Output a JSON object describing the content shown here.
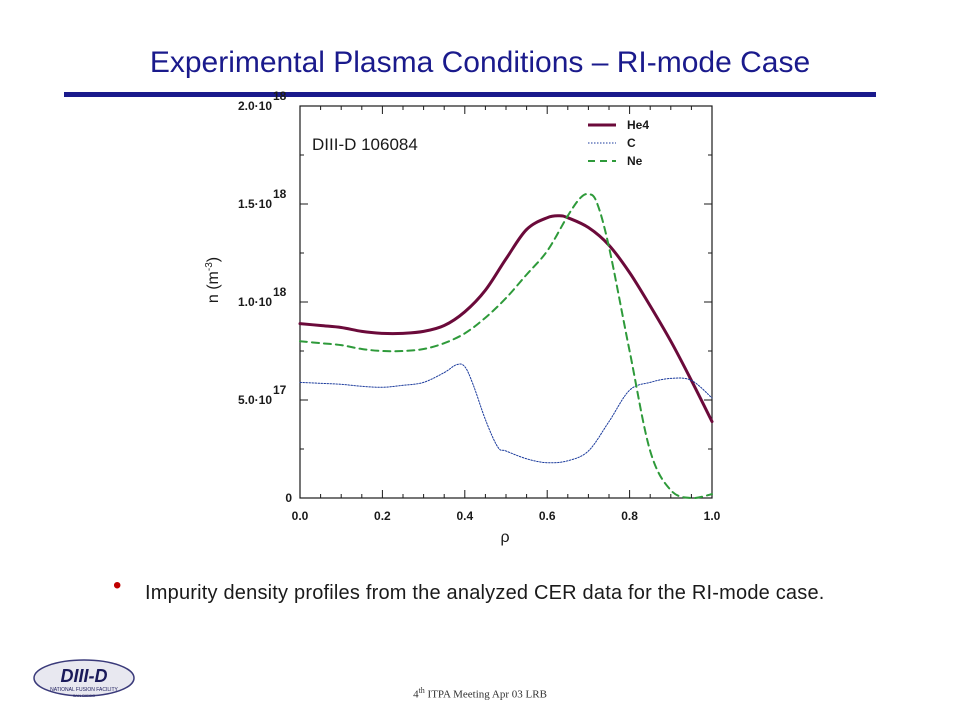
{
  "slide": {
    "title": "Experimental Plasma Conditions – RI-mode Case",
    "bullet": "Impurity density profiles from the analyzed CER data for the RI-mode case.",
    "footer_sup": "th",
    "footer_pre": "4",
    "footer_text": " ITPA Meeting Apr 03 LRB",
    "logo_text": "DIII-D",
    "logo_subtext": "NATIONAL FUSION FACILITY",
    "logo_subtext2": "SAN DIEGO",
    "colors": {
      "title": "#1a1a8c",
      "bullet": "#c00000"
    }
  },
  "chart_data": {
    "type": "line",
    "annotation": "DIII-D 106084",
    "xlabel": "ρ",
    "ylabel_main": "n (m",
    "ylabel_exp": "-3",
    "ylabel_close": ")",
    "xlim": [
      0.0,
      1.0
    ],
    "ylim": [
      0,
      2e+18
    ],
    "x_ticks": [
      {
        "value": 0.0,
        "label": "0.0"
      },
      {
        "value": 0.2,
        "label": "0.2"
      },
      {
        "value": 0.4,
        "label": "0.4"
      },
      {
        "value": 0.6,
        "label": "0.6"
      },
      {
        "value": 0.8,
        "label": "0.8"
      },
      {
        "value": 1.0,
        "label": "1.0"
      }
    ],
    "y_ticks": [
      {
        "value": 0,
        "label": "0",
        "exp": ""
      },
      {
        "value": 5e+17,
        "label": "5.0·10",
        "exp": "17"
      },
      {
        "value": 1e+18,
        "label": "1.0·10",
        "exp": "18"
      },
      {
        "value": 1.5e+18,
        "label": "1.5·10",
        "exp": "18"
      },
      {
        "value": 2e+18,
        "label": "2.0·10",
        "exp": "18"
      }
    ],
    "legend_position": "top-right",
    "series": [
      {
        "name": "He4",
        "color": "#6b0a3a",
        "style": "solid",
        "x": [
          0.0,
          0.05,
          0.1,
          0.15,
          0.2,
          0.25,
          0.3,
          0.35,
          0.4,
          0.45,
          0.5,
          0.55,
          0.6,
          0.63,
          0.65,
          0.7,
          0.75,
          0.8,
          0.85,
          0.9,
          0.95,
          1.0
        ],
        "y": [
          8.9e+17,
          8.8e+17,
          8.7e+17,
          8.5e+17,
          8.4e+17,
          8.4e+17,
          8.5e+17,
          8.8e+17,
          9.5e+17,
          1.06e+18,
          1.22e+18,
          1.37e+18,
          1.43e+18,
          1.44e+18,
          1.43e+18,
          1.38e+18,
          1.29e+18,
          1.15e+18,
          9.8e+17,
          8e+17,
          6e+17,
          3.9e+17
        ]
      },
      {
        "name": "C",
        "color": "#1a3a9c",
        "style": "dotted",
        "x": [
          0.0,
          0.05,
          0.1,
          0.15,
          0.2,
          0.25,
          0.3,
          0.35,
          0.38,
          0.4,
          0.42,
          0.45,
          0.48,
          0.5,
          0.55,
          0.6,
          0.65,
          0.7,
          0.75,
          0.8,
          0.85,
          0.9,
          0.95,
          1.0
        ],
        "y": [
          5.9e+17,
          5.85e+17,
          5.8e+17,
          5.7e+17,
          5.65e+17,
          5.75e+17,
          5.9e+17,
          6.4e+17,
          6.8e+17,
          6.7e+17,
          5.8e+17,
          4e+17,
          2.6e+17,
          2.4e+17,
          2e+17,
          1.8e+17,
          1.9e+17,
          2.4e+17,
          3.9e+17,
          5.5e+17,
          5.9e+17,
          6.1e+17,
          6e+17,
          5.1e+17
        ]
      },
      {
        "name": "Ne",
        "color": "#2e9a3a",
        "style": "dashed",
        "x": [
          0.0,
          0.05,
          0.1,
          0.15,
          0.2,
          0.25,
          0.3,
          0.35,
          0.4,
          0.45,
          0.5,
          0.55,
          0.6,
          0.65,
          0.68,
          0.7,
          0.72,
          0.75,
          0.8,
          0.85,
          0.9,
          0.95,
          1.0
        ],
        "y": [
          8e+17,
          7.9e+17,
          7.8e+17,
          7.6e+17,
          7.5e+17,
          7.5e+17,
          7.6e+17,
          7.9e+17,
          8.4e+17,
          9.2e+17,
          1.02e+18,
          1.14e+18,
          1.26e+18,
          1.44e+18,
          1.53e+18,
          1.55e+18,
          1.51e+18,
          1.28e+18,
          7.5e+17,
          2.4e+17,
          4e+16,
          0.0,
          2e+16
        ]
      }
    ]
  }
}
